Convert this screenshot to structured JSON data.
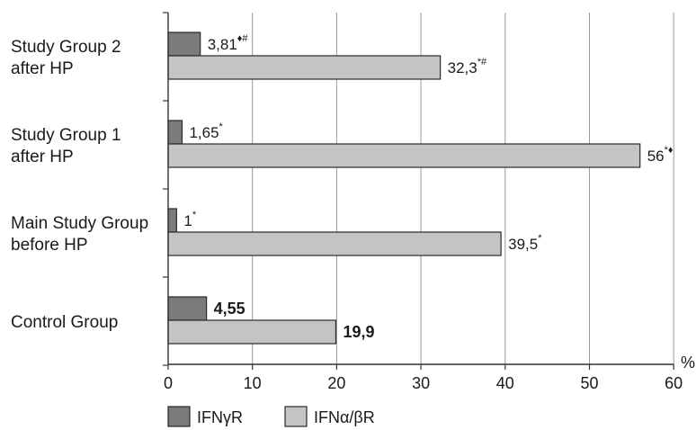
{
  "chart_data": {
    "type": "bar",
    "orientation": "horizontal",
    "categories": [
      [
        "Study Group 2",
        "after HP"
      ],
      [
        "Study Group 1",
        "after HP"
      ],
      [
        "Main Study Group",
        "before HP"
      ],
      [
        "Control Group"
      ]
    ],
    "series": [
      {
        "name": "IFNγR",
        "color": "#7b7b7b",
        "values": [
          3.81,
          1.65,
          1,
          4.55
        ],
        "labels": [
          {
            "text": "3,81",
            "sup": "♦#",
            "bold": false
          },
          {
            "text": "1,65",
            "sup": "*",
            "bold": false
          },
          {
            "text": "1",
            "sup": "*",
            "bold": false
          },
          {
            "text": "4,55",
            "sup": "",
            "bold": true
          }
        ]
      },
      {
        "name": "IFNα/βR",
        "color": "#c4c4c4",
        "values": [
          32.3,
          56,
          39.5,
          19.9
        ],
        "labels": [
          {
            "text": "32,3",
            "sup": "*#",
            "bold": false
          },
          {
            "text": "56",
            "sup": "*♦",
            "bold": false
          },
          {
            "text": "39,5",
            "sup": "*",
            "bold": false
          },
          {
            "text": "19,9",
            "sup": "",
            "bold": true
          }
        ]
      }
    ],
    "x_ticks": [
      "0",
      "10",
      "20",
      "30",
      "40",
      "50",
      "60"
    ],
    "xlim": [
      0,
      60
    ],
    "x_unit": "%",
    "grid": "vertical",
    "legend_position": "bottom-left"
  }
}
